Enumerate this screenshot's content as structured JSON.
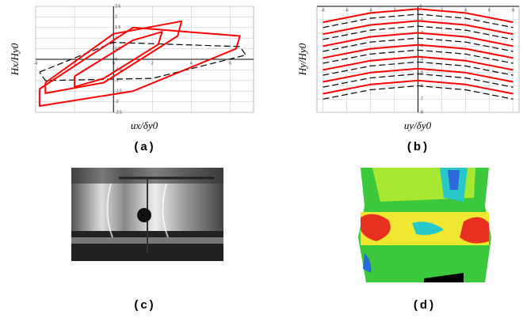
{
  "chart_data": [
    {
      "type": "line",
      "y_label": "Hx/Hy0",
      "x_label": "ux/δy0",
      "grid": true,
      "xlim": [
        -4,
        7.2
      ],
      "ylim": [
        -2.5,
        2.5
      ],
      "xticks": [
        -4,
        -2,
        0,
        2,
        4,
        6
      ],
      "yticks": [
        -2.5,
        -2,
        -1.5,
        -1,
        -0.5,
        0,
        0.5,
        1,
        1.5,
        2,
        2.5
      ],
      "series": [
        {
          "color": "#000000",
          "dash": true,
          "x": [
            -3.8,
            0,
            6.5,
            6.8,
            2,
            -3.5,
            -3.8
          ],
          "values": [
            -0.6,
            0.8,
            0.6,
            0.2,
            -0.9,
            -1.0,
            -0.6
          ]
        },
        {
          "color": "#ff0000",
          "dash": false,
          "x": [
            -2,
            1,
            2.5,
            2.3,
            -0.5,
            -2,
            -2
          ],
          "values": [
            -0.8,
            0.9,
            1.3,
            0.7,
            -0.9,
            -1.3,
            -0.8
          ]
        },
        {
          "color": "#ff0000",
          "dash": false,
          "x": [
            -3.5,
            0,
            3.5,
            3.3,
            -0.5,
            -3.5,
            -3.5
          ],
          "values": [
            -1.1,
            1.2,
            1.8,
            1.1,
            -1.1,
            -1.6,
            -1.1
          ]
        },
        {
          "color": "#ff0000",
          "dash": false,
          "x": [
            -3.8,
            1,
            6.5,
            6.3,
            1,
            -3.8,
            -3.8
          ],
          "values": [
            -1.4,
            1.5,
            1.1,
            0.5,
            -1.5,
            -2.2,
            -1.4
          ]
        }
      ]
    },
    {
      "type": "line",
      "y_label": "Hy/Hy0",
      "x_label": "uy/δy0",
      "grid": true,
      "xlim": [
        -8.5,
        8.5
      ],
      "ylim": [
        -8,
        0
      ],
      "xticks": [
        -8,
        -6,
        -4,
        -2,
        0,
        2,
        4,
        6,
        8
      ],
      "yticks": [
        -8,
        -7,
        -6,
        -5,
        -4,
        -3,
        -2,
        -1,
        0
      ],
      "x": [
        -8,
        -4,
        0,
        4,
        8
      ],
      "series": [
        {
          "color": "#000000",
          "dash": true,
          "values": [
            -1.6,
            -0.9,
            -0.6,
            -0.9,
            -1.6
          ]
        },
        {
          "color": "#000000",
          "dash": true,
          "values": [
            -2.5,
            -1.8,
            -1.5,
            -1.8,
            -2.5
          ]
        },
        {
          "color": "#000000",
          "dash": true,
          "values": [
            -3.4,
            -2.7,
            -2.4,
            -2.7,
            -3.4
          ]
        },
        {
          "color": "#000000",
          "dash": true,
          "values": [
            -4.3,
            -3.6,
            -3.3,
            -3.6,
            -4.3
          ]
        },
        {
          "color": "#000000",
          "dash": true,
          "values": [
            -5.2,
            -4.5,
            -4.2,
            -4.5,
            -5.2
          ]
        },
        {
          "color": "#000000",
          "dash": true,
          "values": [
            -6.1,
            -5.4,
            -5.1,
            -5.4,
            -6.1
          ]
        },
        {
          "color": "#000000",
          "dash": true,
          "values": [
            -7,
            -6.3,
            -6,
            -6.3,
            -7
          ]
        },
        {
          "color": "#ff0000",
          "dash": false,
          "values": [
            -1.2,
            -0.5,
            -0.2,
            -0.5,
            -1.2
          ]
        },
        {
          "color": "#ff0000",
          "dash": false,
          "values": [
            -2.1,
            -1.4,
            -1.1,
            -1.4,
            -2.1
          ]
        },
        {
          "color": "#ff0000",
          "dash": false,
          "values": [
            -3,
            -2.3,
            -2,
            -2.3,
            -3
          ]
        },
        {
          "color": "#ff0000",
          "dash": false,
          "values": [
            -3.9,
            -3.2,
            -2.9,
            -3.2,
            -3.9
          ]
        },
        {
          "color": "#ff0000",
          "dash": false,
          "values": [
            -4.8,
            -4.1,
            -3.8,
            -4.1,
            -4.8
          ]
        },
        {
          "color": "#ff0000",
          "dash": false,
          "values": [
            -5.7,
            -5,
            -4.7,
            -5,
            -5.7
          ]
        },
        {
          "color": "#ff0000",
          "dash": false,
          "values": [
            -6.6,
            -5.9,
            -5.6,
            -5.9,
            -6.6
          ]
        }
      ]
    }
  ],
  "captions": [
    "(a)",
    "(b)",
    "(c)",
    "(d)"
  ]
}
